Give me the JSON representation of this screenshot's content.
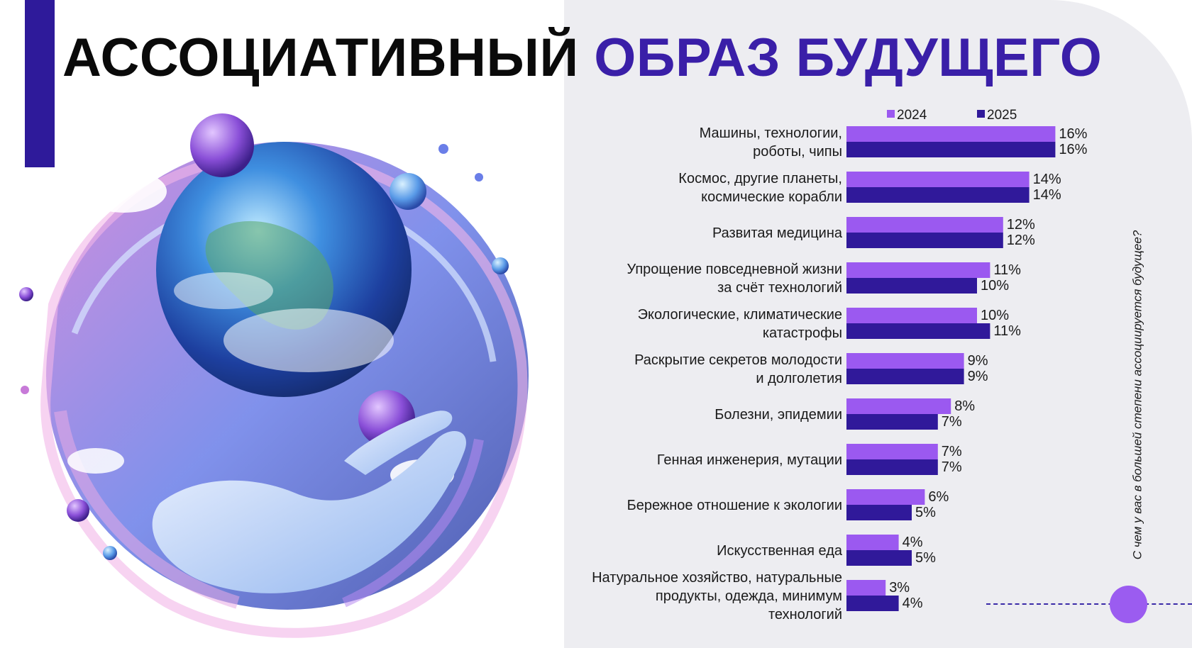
{
  "title": {
    "part1": "АССОЦИАТИВНЫЙ",
    "part2": "ОБРАЗ БУДУЩЕГО"
  },
  "side_question": "С чем у вас в большей степени ассоциируется будущее?",
  "colors": {
    "series_2024": "#9b59f0",
    "series_2025": "#30199a",
    "accent": "#2e1a9a"
  },
  "chart_data": {
    "type": "bar",
    "orientation": "horizontal",
    "categories": [
      [
        "Машины, технологии,",
        "роботы, чипы"
      ],
      [
        "Космос, другие планеты,",
        "космические корабли"
      ],
      [
        "Развитая медицина"
      ],
      [
        "Упрощение повседневной жизни",
        "за счёт технологий"
      ],
      [
        "Экологические, климатические",
        "катастрофы"
      ],
      [
        "Раскрытие секретов молодости",
        "и долголетия"
      ],
      [
        "Болезни, эпидемии"
      ],
      [
        "Генная инженерия, мутации"
      ],
      [
        "Бережное отношение к экологии"
      ],
      [
        "Искусственная еда"
      ],
      [
        "Натуральное хозяйство, натуральные",
        "продукты, одежда, минимум",
        "технологий"
      ]
    ],
    "series": [
      {
        "name": "2024",
        "values": [
          16,
          14,
          12,
          11,
          10,
          9,
          8,
          7,
          6,
          4,
          3
        ]
      },
      {
        "name": "2025",
        "values": [
          16,
          14,
          12,
          10,
          11,
          9,
          7,
          7,
          5,
          5,
          4
        ]
      }
    ],
    "value_suffix": "%",
    "legend_position": "top",
    "grid": false,
    "xlim": [
      0,
      16
    ]
  }
}
